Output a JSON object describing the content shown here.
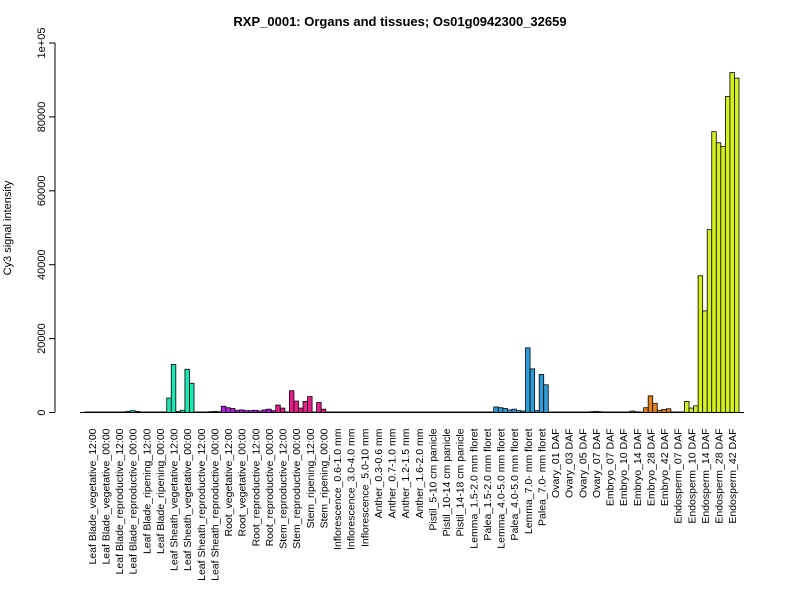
{
  "chart_data": {
    "type": "bar",
    "title": "RXP_0001: Organs and tissues; Os01g0942300_32659",
    "xlabel": "",
    "ylabel": "Cy3 signal intensity",
    "ylim": [
      0,
      100000
    ],
    "yticks": [
      0,
      20000,
      40000,
      60000,
      80000,
      100000
    ],
    "ytick_labels": [
      "0",
      "20000",
      "40000",
      "60000",
      "80000",
      "1e+05"
    ],
    "grid": false,
    "categories": [
      "Leaf Blade_vegetative_12:00",
      "Leaf Blade_vegetative_00:00",
      "Leaf Blade_reproductive_12:00",
      "Leaf Blade_reproductive_00:00",
      "Leaf Blade_ripening_12:00",
      "Leaf Blade_ripening_00:00",
      "Leaf Sheath_vegetative_12:00",
      "Leaf Sheath_vegetative_00:00",
      "Leaf Sheath_reproductive_12:00",
      "Leaf Sheath_reproductive_00:00",
      "Root_vegetative_12:00",
      "Root_vegetative_00:00",
      "Root_reproductive_12:00",
      "Root_reproductive_00:00",
      "Stem_reproductive_12:00",
      "Stem_reproductive_00:00",
      "Stem_ripening_12:00",
      "Stem_ripening_00:00",
      "Inflorescence_0.6-1.0 mm",
      "Inflorescence_3.0-4.0 mm",
      "Inflorescence_5.0-10 mm",
      "Anther_0.3-0.6 mm",
      "Anther_0.7-1.0 mm",
      "Anther_1.2-1.5 mm",
      "Anther_1.6-2.0 mm",
      "Pistil_5-10 cm panicle",
      "Pistil_10-14 cm panicle",
      "Pistil_14-18 cm panicle",
      "Lemma_1.5-2.0 mm floret",
      "Palea_1.5-2.0 mm floret",
      "Lemma_4.0-5.0 mm floret",
      "Palea_4.0-5.0 mm floret",
      "Lemma_7.0- mm floret",
      "Palea_7.0- mm floret",
      "Ovary_01 DAF",
      "Ovary_03 DAF",
      "Ovary_05 DAF",
      "Ovary_07 DAF",
      "Embryo_07 DAF",
      "Embryo_10 DAF",
      "Embryo_14 DAF",
      "Embryo_28 DAF",
      "Embryo_42 DAF",
      "Endosperm_07 DAF",
      "Endosperm_10 DAF",
      "Endosperm_14 DAF",
      "Endosperm_28 DAF",
      "Endosperm_42 DAF"
    ],
    "groups": [
      {
        "category": "Leaf Blade_vegetative_12:00",
        "color": "#B2E9F3",
        "values": [
          150,
          150,
          150
        ]
      },
      {
        "category": "Leaf Blade_vegetative_00:00",
        "color": "#7FE5C8",
        "values": [
          150,
          150,
          150
        ]
      },
      {
        "category": "Leaf Blade_reproductive_12:00",
        "color": "#2DE8B4",
        "values": [
          150,
          150,
          150
        ]
      },
      {
        "category": "Leaf Blade_reproductive_00:00",
        "color": "#1AE899",
        "values": [
          300,
          500,
          300
        ]
      },
      {
        "category": "Leaf Blade_ripening_12:00",
        "color": "#1AE8A8",
        "values": [
          150,
          150,
          150
        ]
      },
      {
        "category": "Leaf Blade_ripening_00:00",
        "color": "#1AE8B8",
        "values": [
          150,
          150,
          150
        ]
      },
      {
        "category": "Leaf Sheath_vegetative_12:00",
        "color": "#1CE6B3",
        "values": [
          3900,
          13000,
          300
        ]
      },
      {
        "category": "Leaf Sheath_vegetative_00:00",
        "color": "#1CE6B3",
        "values": [
          600,
          11700,
          7900
        ]
      },
      {
        "category": "Leaf Sheath_reproductive_12:00",
        "color": "#1CE6B3",
        "values": [
          150,
          150,
          150
        ]
      },
      {
        "category": "Leaf Sheath_reproductive_00:00",
        "color": "#1CE6B3",
        "values": [
          200,
          300,
          200
        ]
      },
      {
        "category": "Root_vegetative_12:00",
        "color": "#B51EE6",
        "values": [
          1700,
          1300,
          1100
        ]
      },
      {
        "category": "Root_vegetative_00:00",
        "color": "#B51EE6",
        "values": [
          600,
          700,
          500
        ]
      },
      {
        "category": "Root_reproductive_12:00",
        "color": "#B51EE6",
        "values": [
          500,
          600,
          400
        ]
      },
      {
        "category": "Root_reproductive_00:00",
        "color": "#B51EE6",
        "values": [
          700,
          900,
          500
        ]
      },
      {
        "category": "Stem_reproductive_12:00",
        "color": "#E61E8C",
        "values": [
          2000,
          1200,
          150
        ]
      },
      {
        "category": "Stem_reproductive_00:00",
        "color": "#E61E8C",
        "values": [
          5900,
          3100,
          1200
        ]
      },
      {
        "category": "Stem_ripening_12:00",
        "color": "#E61E8C",
        "values": [
          3000,
          4300,
          150
        ]
      },
      {
        "category": "Stem_ripening_00:00",
        "color": "#E61E8C",
        "values": [
          2700,
          900,
          150
        ]
      },
      {
        "category": "Inflorescence_0.6-1.0 mm",
        "color": "#2F9BD9",
        "values": [
          150,
          150,
          150
        ]
      },
      {
        "category": "Inflorescence_3.0-4.0 mm",
        "color": "#2F9BD9",
        "values": [
          150,
          150,
          150
        ]
      },
      {
        "category": "Inflorescence_5.0-10 mm",
        "color": "#2F9BD9",
        "values": [
          150,
          150,
          150
        ]
      },
      {
        "category": "Anther_0.3-0.6 mm",
        "color": "#2F9BD9",
        "values": [
          150,
          150,
          150
        ]
      },
      {
        "category": "Anther_0.7-1.0 mm",
        "color": "#2F9BD9",
        "values": [
          150,
          150,
          150
        ]
      },
      {
        "category": "Anther_1.2-1.5 mm",
        "color": "#2F9BD9",
        "values": [
          150,
          150,
          150
        ]
      },
      {
        "category": "Anther_1.6-2.0 mm",
        "color": "#2F9BD9",
        "values": [
          150,
          150,
          150
        ]
      },
      {
        "category": "Pistil_5-10 cm panicle",
        "color": "#2F9BD9",
        "values": [
          150,
          150,
          150
        ]
      },
      {
        "category": "Pistil_10-14 cm panicle",
        "color": "#2F9BD9",
        "values": [
          150,
          150,
          150
        ]
      },
      {
        "category": "Pistil_14-18 cm panicle",
        "color": "#2F9BD9",
        "values": [
          150,
          150,
          150
        ]
      },
      {
        "category": "Lemma_1.5-2.0 mm floret",
        "color": "#2F9BD9",
        "values": [
          150,
          150,
          150
        ]
      },
      {
        "category": "Palea_1.5-2.0 mm floret",
        "color": "#2F9BD9",
        "values": [
          150,
          150,
          150
        ]
      },
      {
        "category": "Lemma_4.0-5.0 mm floret",
        "color": "#2F9BD9",
        "values": [
          1500,
          1300,
          1100
        ]
      },
      {
        "category": "Palea_4.0-5.0 mm floret",
        "color": "#2F9BD9",
        "values": [
          700,
          900,
          500
        ]
      },
      {
        "category": "Lemma_7.0- mm floret",
        "color": "#2F9BD9",
        "values": [
          400,
          17500,
          11800
        ]
      },
      {
        "category": "Palea_7.0- mm floret",
        "color": "#2F9BD9",
        "values": [
          500,
          10300,
          7500
        ]
      },
      {
        "category": "Ovary_01 DAF",
        "color": "#D98A1E",
        "values": [
          150,
          150,
          150
        ]
      },
      {
        "category": "Ovary_03 DAF",
        "color": "#D98A1E",
        "values": [
          150,
          150,
          150
        ]
      },
      {
        "category": "Ovary_05 DAF",
        "color": "#D98A1E",
        "values": [
          150,
          150,
          150
        ]
      },
      {
        "category": "Ovary_07 DAF",
        "color": "#D98A1E",
        "values": [
          200,
          300,
          200
        ]
      },
      {
        "category": "Embryo_07 DAF",
        "color": "#E6821E",
        "values": [
          150,
          150,
          150
        ]
      },
      {
        "category": "Embryo_10 DAF",
        "color": "#E6821E",
        "values": [
          150,
          150,
          150
        ]
      },
      {
        "category": "Embryo_14 DAF",
        "color": "#E6821E",
        "values": [
          400,
          200,
          150
        ]
      },
      {
        "category": "Embryo_28 DAF",
        "color": "#E6821E",
        "values": [
          1300,
          4500,
          2500
        ]
      },
      {
        "category": "Embryo_42 DAF",
        "color": "#E6821E",
        "values": [
          600,
          800,
          1000
        ]
      },
      {
        "category": "Endosperm_07 DAF",
        "color": "#D4F01E",
        "values": [
          150,
          150,
          150
        ]
      },
      {
        "category": "Endosperm_10 DAF",
        "color": "#D4F01E",
        "values": [
          3000,
          1200,
          1800
        ]
      },
      {
        "category": "Endosperm_14 DAF",
        "color": "#D4F01E",
        "values": [
          37000,
          27500,
          49500
        ]
      },
      {
        "category": "Endosperm_28 DAF",
        "color": "#D4F01E",
        "values": [
          76000,
          73000,
          72000
        ]
      },
      {
        "category": "Endosperm_42 DAF",
        "color": "#D4F01E",
        "values": [
          85500,
          92000,
          90500
        ]
      }
    ]
  }
}
